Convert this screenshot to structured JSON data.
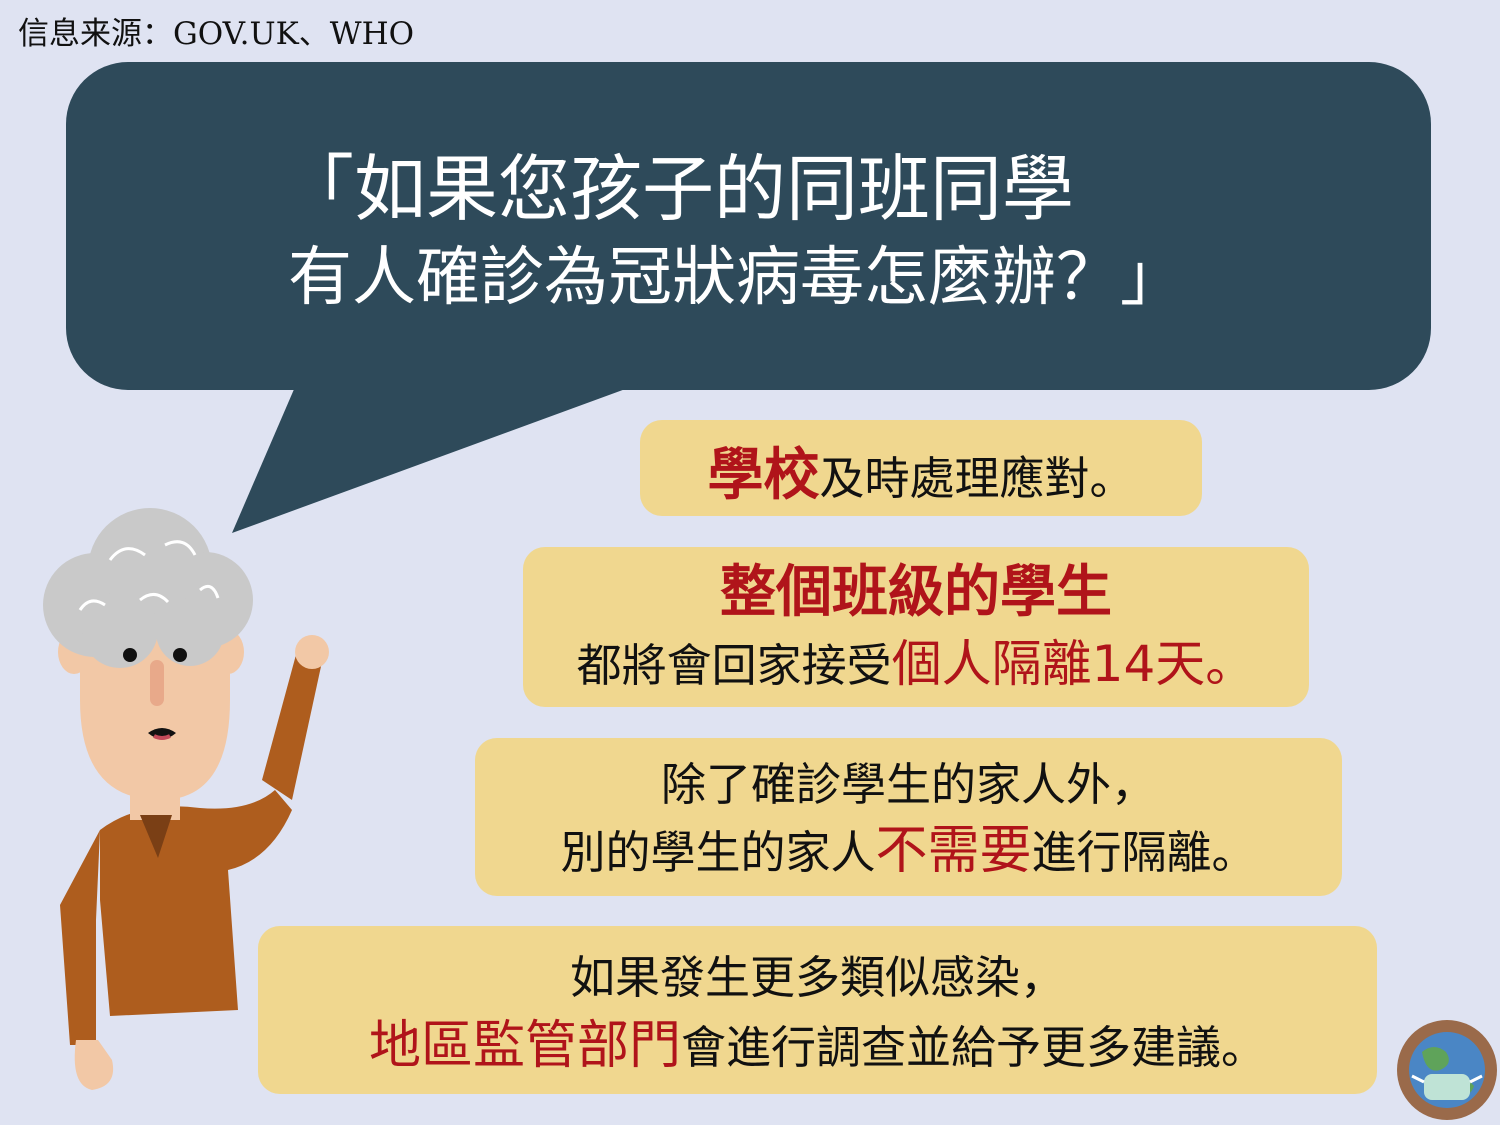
{
  "source": {
    "text": "信息来源：GOV.UK、WHO"
  },
  "title": {
    "line1": "「如果您孩子的同班同學",
    "line2": "有人確診為冠狀病毒怎麼辦？」"
  },
  "cards": [
    {
      "highlight": "學校",
      "text": "及時處理應對。"
    },
    {
      "line1": "整個班級的學生",
      "line2_prefix": "都將會回家接受",
      "line2_highlight": "個人隔離14天。"
    },
    {
      "line1": "除了確診學生的家人外，",
      "line2_prefix": "別的學生的家人",
      "line2_highlight": "不需要",
      "line2_suffix": "進行隔離。"
    },
    {
      "line1": "如果發生更多類似感染，",
      "line2_highlight": "地區監管部門",
      "line2_suffix": "會進行調查並給予更多建議。"
    }
  ],
  "colors": {
    "background": "#dfe3f2",
    "bubble": "#2e4a5a",
    "card": "#f0d78f",
    "highlight": "#b0141a",
    "shirt": "#ae5d1e",
    "skin": "#f2c8a6",
    "hair": "#c9c9c9"
  },
  "icons": {
    "speaker": "old-man-illustration",
    "logo": "earth-mask-logo"
  }
}
